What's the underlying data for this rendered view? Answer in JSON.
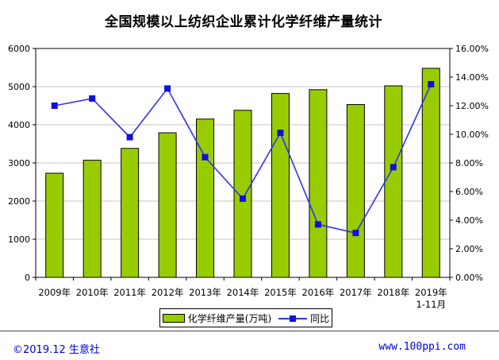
{
  "title": "全国规模以上纺织企业累计化学纤维产量统计",
  "chart_data": {
    "type": "combo bar+line",
    "categories": [
      "2009年",
      "2010年",
      "2011年",
      "2012年",
      "2013年",
      "2014年",
      "2015年",
      "2016年",
      "2017年",
      "2018年",
      "2019年"
    ],
    "last_category_subnote": "1-11月",
    "series": [
      {
        "name": "化学纤维产量(万吨)",
        "type": "bar",
        "axis": "left",
        "values": [
          2730,
          3070,
          3380,
          3790,
          4150,
          4380,
          4820,
          4920,
          4530,
          5020,
          5480
        ]
      },
      {
        "name": "同比",
        "type": "line",
        "axis": "right",
        "values": [
          12.0,
          12.5,
          9.8,
          13.2,
          8.4,
          5.5,
          10.1,
          3.7,
          3.1,
          7.7,
          13.5
        ]
      }
    ],
    "left_axis": {
      "min": 0,
      "max": 6000,
      "step": 1000,
      "tick_labels": [
        "0",
        "1000",
        "2000",
        "3000",
        "4000",
        "5000",
        "6000"
      ]
    },
    "right_axis": {
      "min": 0,
      "max": 16,
      "step": 2,
      "tick_labels": [
        "0.00%",
        "2.00%",
        "4.00%",
        "6.00%",
        "8.00%",
        "10.00%",
        "12.00%",
        "14.00%",
        "16.00%"
      ]
    },
    "grid": true,
    "legend_position": "bottom"
  },
  "legend": {
    "items": [
      {
        "label": "化学纤维产量(万吨)",
        "swatch": "bar"
      },
      {
        "label": "同比",
        "swatch": "line"
      }
    ]
  },
  "footer": {
    "left": "©2019.12 生意社",
    "right": "www.100ppi.com"
  },
  "colors": {
    "bar_fill": "#99CC00",
    "bar_border": "#000000",
    "line": "#3333EE",
    "marker": "#1111DD",
    "grid": "#C6C6C6",
    "axis": "#000000",
    "footer_text": "#0000CC",
    "background": "#FFFFFF"
  }
}
